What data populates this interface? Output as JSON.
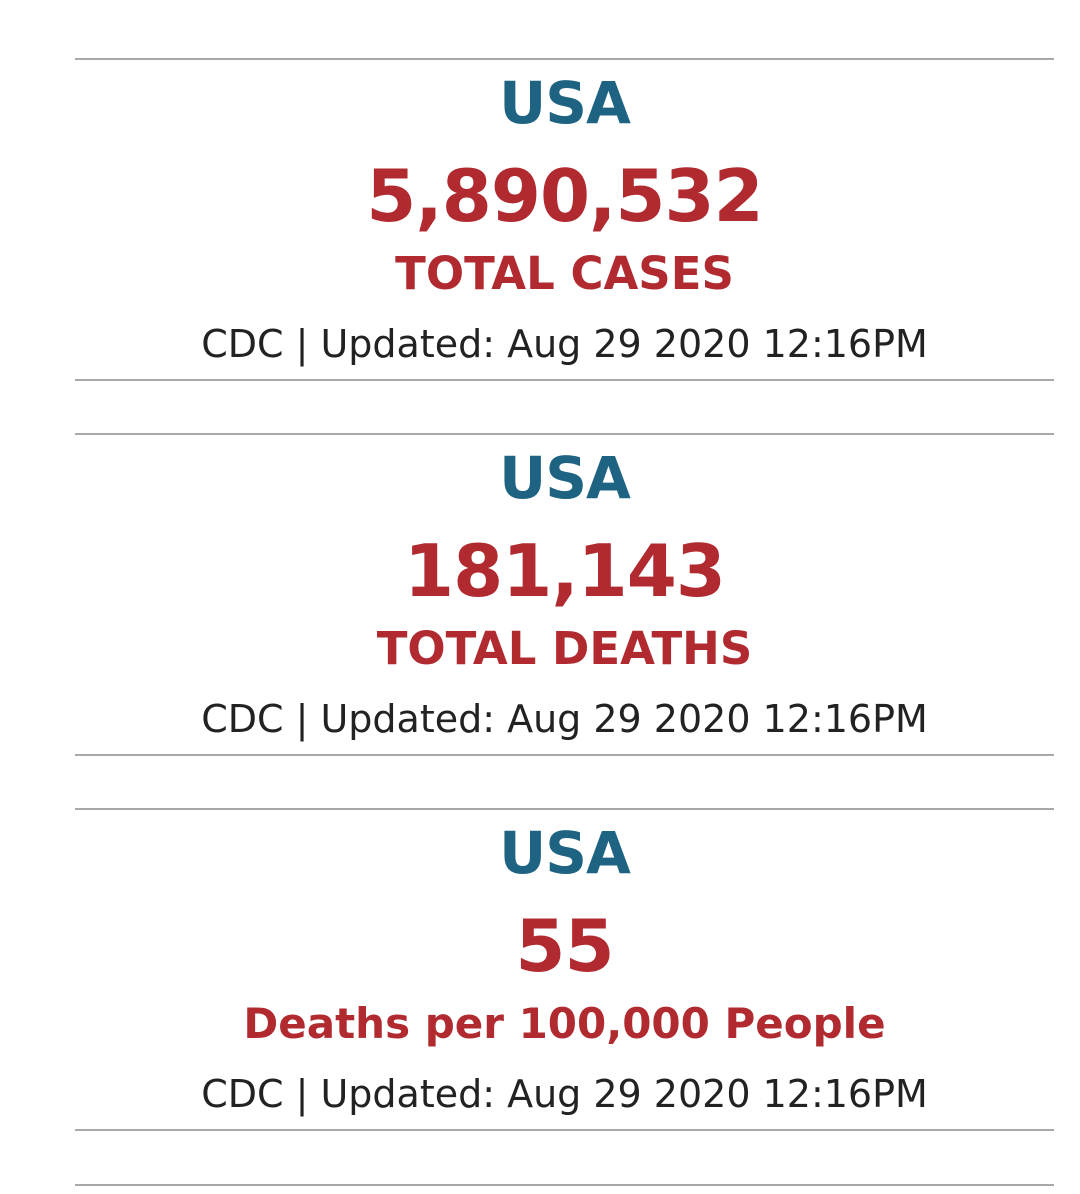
{
  "colors": {
    "region": "#1e6482",
    "value": "#b02a30",
    "source": "#222222",
    "rule": "#a8a8a8"
  },
  "cards": [
    {
      "region": "USA",
      "value": "5,890,532",
      "label": "TOTAL CASES",
      "source": "CDC | Updated: Aug 29 2020 12:16PM"
    },
    {
      "region": "USA",
      "value": "181,143",
      "label": "TOTAL DEATHS",
      "source": "CDC | Updated: Aug 29 2020 12:16PM"
    },
    {
      "region": "USA",
      "value": "55",
      "label": "Deaths per 100,000 People",
      "source": "CDC | Updated: Aug 29 2020 12:16PM"
    }
  ]
}
